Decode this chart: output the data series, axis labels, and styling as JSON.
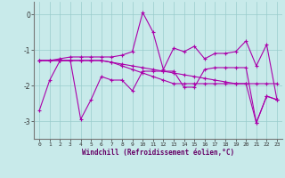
{
  "xlabel": "Windchill (Refroidissement éolien,°C)",
  "background_color": "#c8eaea",
  "grid_color": "#99cccc",
  "line_color": "#aa00aa",
  "x": [
    0,
    1,
    2,
    3,
    4,
    5,
    6,
    7,
    8,
    9,
    10,
    11,
    12,
    13,
    14,
    15,
    16,
    17,
    18,
    19,
    20,
    21,
    22,
    23
  ],
  "series1": [
    -2.7,
    -1.85,
    -1.3,
    -1.3,
    -2.95,
    -2.4,
    -1.75,
    -1.85,
    -1.85,
    -2.15,
    -1.6,
    -1.6,
    -1.6,
    -1.6,
    -2.05,
    -2.05,
    -1.55,
    -1.5,
    -1.5,
    -1.5,
    -1.5,
    -3.05,
    -2.3,
    -2.4
  ],
  "series2": [
    -1.3,
    -1.3,
    -1.3,
    -1.3,
    -1.3,
    -1.3,
    -1.3,
    -1.35,
    -1.4,
    -1.45,
    -1.5,
    -1.55,
    -1.6,
    -1.65,
    -1.7,
    -1.75,
    -1.8,
    -1.85,
    -1.9,
    -1.95,
    -1.95,
    -1.95,
    -1.95,
    -1.95
  ],
  "series3": [
    -1.3,
    -1.3,
    -1.25,
    -1.2,
    -1.2,
    -1.2,
    -1.2,
    -1.2,
    -1.15,
    -1.05,
    0.05,
    -0.5,
    -1.55,
    -0.95,
    -1.05,
    -0.9,
    -1.25,
    -1.1,
    -1.1,
    -1.05,
    -0.75,
    -1.45,
    -0.85,
    -2.4
  ],
  "series4": [
    -1.3,
    -1.3,
    -1.3,
    -1.3,
    -1.3,
    -1.3,
    -1.3,
    -1.35,
    -1.45,
    -1.55,
    -1.65,
    -1.75,
    -1.85,
    -1.95,
    -1.95,
    -1.95,
    -1.95,
    -1.95,
    -1.95,
    -1.95,
    -1.95,
    -3.05,
    -2.3,
    -2.4
  ],
  "ylim": [
    -3.5,
    0.35
  ],
  "yticks": [
    0,
    -1,
    -2,
    -3
  ],
  "xlim": [
    -0.5,
    23.5
  ],
  "figsize": [
    3.2,
    2.0
  ],
  "dpi": 100
}
